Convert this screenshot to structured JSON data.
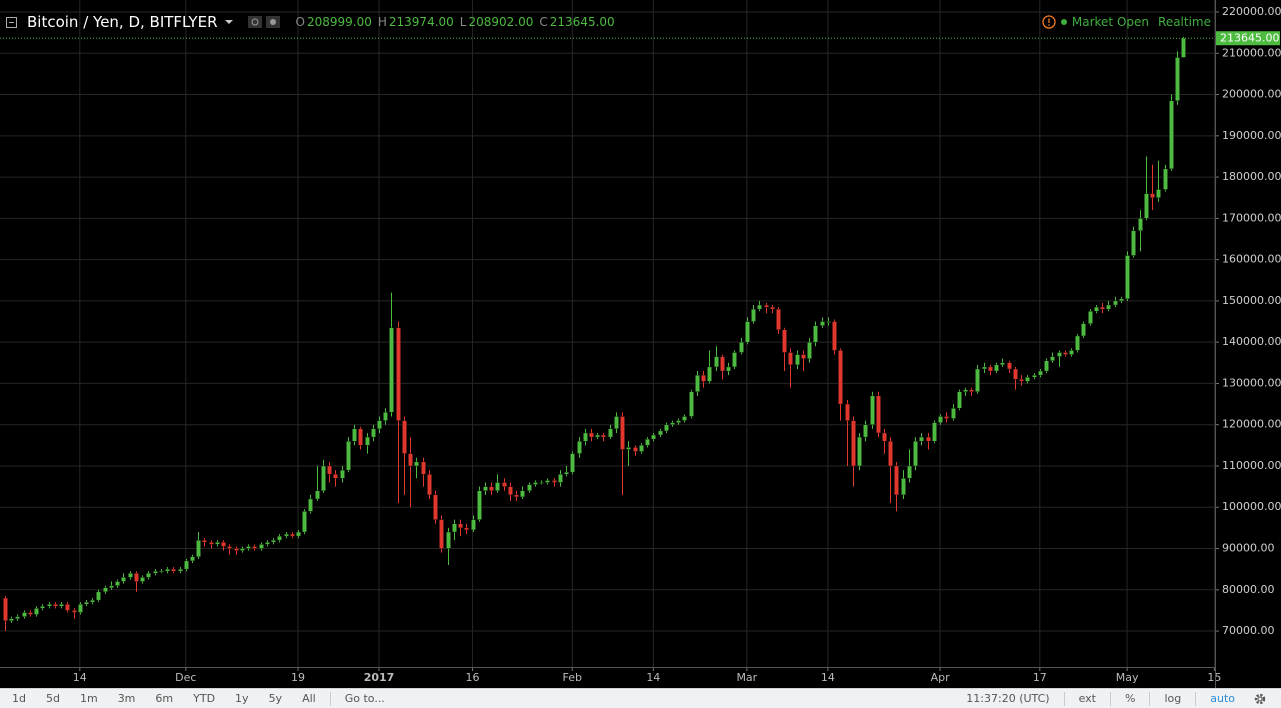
{
  "header": {
    "symbol": "Bitcoin / Yen, D, BITFLYER",
    "ohlc": [
      {
        "label": "O",
        "value": "208999.00"
      },
      {
        "label": "H",
        "value": "213974.00"
      },
      {
        "label": "L",
        "value": "208902.00"
      },
      {
        "label": "C",
        "value": "213645.00"
      }
    ],
    "status": "Market Open",
    "mode": "Realtime"
  },
  "chart_data": {
    "type": "candlestick",
    "up_color": "#4cbb3f",
    "down_color": "#e2372d",
    "grid": true,
    "open": [
      78000,
      72500,
      73000,
      73500,
      74500,
      74000,
      75500,
      76000,
      76500,
      76000,
      76500,
      75000,
      74500,
      76500,
      77000,
      77500,
      79500,
      80500,
      81000,
      82000,
      83000,
      84000,
      82000,
      83000,
      84000,
      84500,
      84500,
      85000,
      84500,
      85000,
      87000,
      88000,
      92000,
      91500,
      91000,
      91500,
      90500,
      90000,
      89500,
      90000,
      90500,
      90000,
      91000,
      91500,
      92000,
      93000,
      93500,
      93000,
      94000,
      99000,
      102000,
      104000,
      110000,
      108000,
      107000,
      109000,
      116000,
      119000,
      115000,
      117000,
      119000,
      121000,
      123000,
      143500,
      121000,
      113000,
      110000,
      111000,
      108000,
      103000,
      97000,
      90000,
      94000,
      96000,
      95000,
      94500,
      97000,
      104000,
      105000,
      104000,
      106000,
      105000,
      103000,
      102500,
      104000,
      105500,
      106000,
      106000,
      106500,
      106000,
      108000,
      108500,
      113000,
      116000,
      118000,
      117000,
      117500,
      117000,
      119000,
      122000,
      114000,
      114500,
      113500,
      115000,
      116500,
      117500,
      118500,
      120000,
      120500,
      121000,
      122000,
      128000,
      132000,
      130500,
      134000,
      136500,
      133000,
      134000,
      137500,
      140000,
      145000,
      148000,
      149000,
      148500,
      148000,
      143000,
      137500,
      134500,
      137000,
      136000,
      140000,
      144000,
      145000,
      145000,
      138000,
      125000,
      121000,
      110000,
      117000,
      120000,
      127000,
      118000,
      116000,
      110000,
      103000,
      107000,
      110000,
      116000,
      117000,
      116000,
      120500,
      122000,
      121500,
      124000,
      128000,
      128500,
      128000,
      133500,
      134000,
      133000,
      134500,
      135000,
      133500,
      131000,
      130500,
      131500,
      132000,
      133000,
      135500,
      136500,
      137500,
      137000,
      138000,
      141500,
      144500,
      147500,
      148500,
      148000,
      149000,
      150000,
      150500,
      161000,
      167000,
      170000,
      176000,
      175000,
      177000,
      182000,
      198500,
      208999
    ],
    "high": [
      78500,
      73500,
      74000,
      75000,
      75000,
      76000,
      76500,
      77000,
      77000,
      77000,
      77000,
      75500,
      77000,
      77500,
      78000,
      80000,
      81000,
      82000,
      82500,
      84000,
      84500,
      84500,
      83500,
      84500,
      85000,
      85000,
      85500,
      85500,
      85500,
      87500,
      88500,
      94000,
      92500,
      92000,
      92000,
      92000,
      91000,
      90500,
      90500,
      91000,
      91000,
      91500,
      92000,
      92500,
      93500,
      94000,
      94000,
      94500,
      99500,
      103000,
      110000,
      111500,
      111000,
      109000,
      110000,
      117000,
      120000,
      119500,
      118000,
      120000,
      122000,
      124000,
      152000,
      145000,
      122000,
      117000,
      112000,
      112000,
      109000,
      104000,
      98000,
      95000,
      97000,
      97000,
      96000,
      98000,
      105000,
      106000,
      106000,
      108000,
      107000,
      106000,
      104000,
      105000,
      106000,
      106500,
      106500,
      107000,
      107000,
      109000,
      110000,
      113500,
      117000,
      119000,
      119000,
      118000,
      118000,
      120000,
      123000,
      123000,
      116000,
      115000,
      115500,
      117000,
      118000,
      119000,
      120500,
      121000,
      121500,
      122500,
      128500,
      133000,
      133000,
      138000,
      139000,
      137000,
      135000,
      138000,
      141000,
      146000,
      149000,
      150000,
      149500,
      149000,
      148500,
      143500,
      138500,
      138000,
      138000,
      141000,
      145000,
      146000,
      146000,
      145500,
      138500,
      126000,
      122000,
      118000,
      121000,
      128000,
      128000,
      119000,
      117000,
      111000,
      109000,
      114000,
      117000,
      118000,
      118000,
      121000,
      122500,
      123000,
      125000,
      128500,
      129000,
      129000,
      134500,
      135000,
      134500,
      135000,
      136000,
      135500,
      134000,
      132000,
      132000,
      132500,
      133500,
      136000,
      137500,
      138000,
      138000,
      138500,
      142000,
      145000,
      148000,
      149000,
      149500,
      150000,
      151000,
      151000,
      162000,
      168000,
      172000,
      185000,
      183000,
      184000,
      183000,
      200000,
      210500,
      213974
    ],
    "low": [
      70000,
      72000,
      72500,
      73000,
      73500,
      73500,
      75000,
      75500,
      75500,
      75500,
      74500,
      73000,
      74000,
      76000,
      76500,
      77000,
      79000,
      80000,
      80500,
      81500,
      82500,
      79500,
      81500,
      82500,
      83500,
      84000,
      84000,
      84000,
      84000,
      84500,
      86500,
      87500,
      90500,
      90000,
      90500,
      89500,
      88500,
      88500,
      89000,
      89500,
      89500,
      89500,
      90500,
      91000,
      91500,
      92500,
      92500,
      92500,
      93500,
      98500,
      101500,
      103500,
      106000,
      105000,
      106000,
      108500,
      115000,
      114000,
      113000,
      116000,
      118000,
      120000,
      122000,
      101000,
      103000,
      100000,
      107000,
      105000,
      102000,
      96000,
      89000,
      86000,
      92000,
      93000,
      93500,
      94000,
      96500,
      103000,
      103000,
      103500,
      104000,
      101500,
      101500,
      102000,
      103500,
      105000,
      105500,
      105500,
      105000,
      105000,
      107500,
      108000,
      112000,
      115000,
      116000,
      116500,
      116000,
      116500,
      118000,
      103000,
      110000,
      112500,
      113000,
      114500,
      116000,
      117000,
      118000,
      119500,
      120000,
      120500,
      121500,
      127000,
      129000,
      130000,
      133000,
      131000,
      132000,
      133500,
      137000,
      139500,
      144500,
      147500,
      147000,
      147000,
      142000,
      133000,
      129000,
      133500,
      133000,
      135000,
      139000,
      143500,
      144000,
      137000,
      121000,
      110000,
      105000,
      109000,
      116000,
      119000,
      117000,
      113000,
      101000,
      99000,
      102000,
      106000,
      109000,
      115000,
      114000,
      115500,
      120000,
      120500,
      121000,
      123500,
      127000,
      127000,
      127500,
      132500,
      132000,
      132500,
      134000,
      132500,
      128500,
      129500,
      130000,
      131000,
      131500,
      132500,
      135000,
      134000,
      136500,
      136500,
      137500,
      141000,
      144000,
      147000,
      147000,
      147500,
      148500,
      149500,
      150000,
      160500,
      162000,
      169500,
      172000,
      174000,
      176500,
      181500,
      197500,
      208902
    ],
    "close": [
      72500,
      73000,
      73500,
      74500,
      74000,
      75500,
      76000,
      76500,
      76000,
      76500,
      75000,
      74500,
      76500,
      77000,
      77500,
      79500,
      80500,
      81000,
      82000,
      83000,
      84000,
      82000,
      83000,
      84000,
      84500,
      84500,
      85000,
      84500,
      85000,
      87000,
      88000,
      92000,
      91500,
      91000,
      91500,
      90500,
      90000,
      89500,
      90000,
      90500,
      90000,
      91000,
      91500,
      92000,
      93000,
      93500,
      93000,
      94000,
      99000,
      102000,
      104000,
      110000,
      108000,
      107000,
      109000,
      116000,
      119000,
      115000,
      117000,
      119000,
      121000,
      123000,
      143500,
      121000,
      113000,
      110000,
      111000,
      108000,
      103000,
      97000,
      90000,
      94000,
      96000,
      95000,
      94500,
      97000,
      104000,
      105000,
      104000,
      106000,
      105000,
      103000,
      102500,
      104000,
      105500,
      106000,
      106000,
      106500,
      106000,
      108000,
      108500,
      113000,
      116000,
      118000,
      117000,
      117500,
      117000,
      119000,
      122000,
      114000,
      114500,
      113500,
      115000,
      116500,
      117500,
      118500,
      120000,
      120500,
      121000,
      122000,
      128000,
      132000,
      130500,
      134000,
      136500,
      133000,
      134000,
      137500,
      140000,
      145000,
      148000,
      149000,
      148500,
      148000,
      143000,
      137500,
      134500,
      137000,
      136000,
      140000,
      144000,
      145000,
      145000,
      138000,
      125000,
      121000,
      110000,
      117000,
      120000,
      127000,
      118000,
      116000,
      110000,
      103000,
      107000,
      110000,
      116000,
      117000,
      116000,
      120500,
      122000,
      121500,
      124000,
      128000,
      128500,
      128000,
      133500,
      134000,
      133000,
      134500,
      135000,
      133500,
      131000,
      130500,
      131500,
      132000,
      133000,
      135500,
      136500,
      137500,
      137000,
      138000,
      141500,
      144500,
      147500,
      148500,
      148000,
      149000,
      150000,
      150500,
      161000,
      167000,
      170000,
      176000,
      175000,
      177000,
      182000,
      198500,
      208999,
      213645
    ],
    "last_price_label": "213645.00",
    "xlim": [
      -0.8,
      194.1
    ],
    "xticks": [
      {
        "value": 12,
        "label": "14"
      },
      {
        "value": 29,
        "label": "Dec"
      },
      {
        "value": 47,
        "label": "19"
      },
      {
        "value": 60,
        "label": "2017"
      },
      {
        "value": 75,
        "label": "16"
      },
      {
        "value": 91,
        "label": "Feb"
      },
      {
        "value": 104,
        "label": "14"
      },
      {
        "value": 119,
        "label": "Mar"
      },
      {
        "value": 132,
        "label": "14"
      },
      {
        "value": 150,
        "label": "Apr"
      },
      {
        "value": 166,
        "label": "17"
      },
      {
        "value": 180,
        "label": "May"
      },
      {
        "value": 194,
        "label": "15"
      }
    ],
    "ylim": [
      61290,
      222910
    ],
    "yticks": [
      {
        "value": 70000,
        "label": "70000.00"
      },
      {
        "value": 80000,
        "label": "80000.00"
      },
      {
        "value": 90000,
        "label": "90000.00"
      },
      {
        "value": 100000,
        "label": "100000.00"
      },
      {
        "value": 110000,
        "label": "110000.00"
      },
      {
        "value": 120000,
        "label": "120000.00"
      },
      {
        "value": 130000,
        "label": "130000.00"
      },
      {
        "value": 140000,
        "label": "140000.00"
      },
      {
        "value": 150000,
        "label": "150000.00"
      },
      {
        "value": 160000,
        "label": "160000.00"
      },
      {
        "value": 170000,
        "label": "170000.00"
      },
      {
        "value": 180000,
        "label": "180000.00"
      },
      {
        "value": 190000,
        "label": "190000.00"
      },
      {
        "value": 200000,
        "label": "200000.00"
      },
      {
        "value": 210000,
        "label": "210000.00"
      },
      {
        "value": 220000,
        "label": "220000.00"
      }
    ]
  },
  "toolbar": {
    "ranges": [
      "1d",
      "5d",
      "1m",
      "3m",
      "6m",
      "YTD",
      "1y",
      "5y",
      "All"
    ],
    "goto": "Go to...",
    "time": "11:37:20 (UTC)",
    "options": [
      "ext",
      "%",
      "log",
      "auto"
    ]
  }
}
